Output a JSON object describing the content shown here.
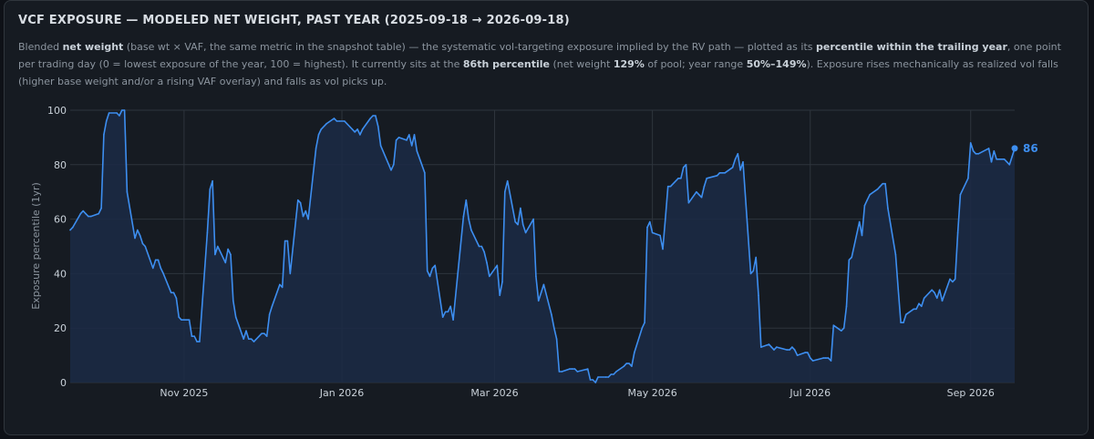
{
  "header": {
    "title": "VCF EXPOSURE — MODELED NET WEIGHT, PAST YEAR (2025-09-18 → 2026-09-18)"
  },
  "description": {
    "t1": "Blended ",
    "b1": "net weight",
    "t2": " (base wt × VAF, the same metric in the snapshot table) — the systematic vol-targeting exposure implied by the RV path — plotted as its ",
    "b2": "percentile within the trailing year",
    "t3": ", one point per trading day (0 = lowest exposure of the year, 100 = highest). It currently sits at the ",
    "b3": "86th percentile",
    "t4": " (net weight ",
    "b4": "129%",
    "t5": " of pool; year range ",
    "b5": "50%–149%",
    "t6": "). Exposure rises mechanically as realized vol falls (higher base weight and/or a rising VAF overlay) and falls as vol picks up."
  },
  "colors": {
    "line": "#3d8ef0",
    "fill": "#1b2a45",
    "grid": "#2e353d",
    "axis_text": "#c9d1d9",
    "label": "#3d8ef0"
  },
  "chart_data": {
    "type": "area",
    "x_start": "2025-09-18",
    "x_end": "2026-09-18",
    "ylabel": "Exposure percentile (1yr)",
    "ylim": [
      0,
      100
    ],
    "yticks": [
      0,
      20,
      40,
      60,
      80,
      100
    ],
    "xticks": [
      {
        "label": "Nov 2025",
        "date": "2025-11-01"
      },
      {
        "label": "Jan 2026",
        "date": "2026-01-01"
      },
      {
        "label": "Mar 2026",
        "date": "2026-03-01"
      },
      {
        "label": "May 2026",
        "date": "2026-05-01"
      },
      {
        "label": "Jul 2026",
        "date": "2026-07-01"
      },
      {
        "label": "Sep 2026",
        "date": "2026-09-01"
      }
    ],
    "grid": true,
    "end_label": "86",
    "series": [
      {
        "values": [
          [
            "2025-09-18",
            56
          ],
          [
            "2025-09-19",
            57
          ],
          [
            "2025-09-22",
            62
          ],
          [
            "2025-09-23",
            63
          ],
          [
            "2025-09-24",
            62
          ],
          [
            "2025-09-25",
            61
          ],
          [
            "2025-09-26",
            61
          ],
          [
            "2025-09-29",
            62
          ],
          [
            "2025-09-30",
            64
          ],
          [
            "2025-10-01",
            91
          ],
          [
            "2025-10-02",
            96
          ],
          [
            "2025-10-03",
            99
          ],
          [
            "2025-10-06",
            99
          ],
          [
            "2025-10-07",
            98
          ],
          [
            "2025-10-08",
            100
          ],
          [
            "2025-10-09",
            100
          ],
          [
            "2025-10-10",
            70
          ],
          [
            "2025-10-13",
            53
          ],
          [
            "2025-10-14",
            56
          ],
          [
            "2025-10-15",
            54
          ],
          [
            "2025-10-16",
            51
          ],
          [
            "2025-10-17",
            50
          ],
          [
            "2025-10-20",
            42
          ],
          [
            "2025-10-21",
            45
          ],
          [
            "2025-10-22",
            45
          ],
          [
            "2025-10-23",
            42
          ],
          [
            "2025-10-24",
            40
          ],
          [
            "2025-10-27",
            33
          ],
          [
            "2025-10-28",
            33
          ],
          [
            "2025-10-29",
            31
          ],
          [
            "2025-10-30",
            24
          ],
          [
            "2025-10-31",
            23
          ],
          [
            "2025-11-03",
            23
          ],
          [
            "2025-11-04",
            17
          ],
          [
            "2025-11-05",
            17
          ],
          [
            "2025-11-06",
            15
          ],
          [
            "2025-11-07",
            15
          ],
          [
            "2025-11-10",
            55
          ],
          [
            "2025-11-11",
            71
          ],
          [
            "2025-11-12",
            74
          ],
          [
            "2025-11-13",
            47
          ],
          [
            "2025-11-14",
            50
          ],
          [
            "2025-11-17",
            44
          ],
          [
            "2025-11-18",
            49
          ],
          [
            "2025-11-19",
            47
          ],
          [
            "2025-11-20",
            30
          ],
          [
            "2025-11-21",
            24
          ],
          [
            "2025-11-24",
            16
          ],
          [
            "2025-11-25",
            19
          ],
          [
            "2025-11-26",
            16
          ],
          [
            "2025-11-27",
            16
          ],
          [
            "2025-11-28",
            15
          ],
          [
            "2025-12-01",
            18
          ],
          [
            "2025-12-02",
            18
          ],
          [
            "2025-12-03",
            17
          ],
          [
            "2025-12-04",
            25
          ],
          [
            "2025-12-05",
            28
          ],
          [
            "2025-12-08",
            36
          ],
          [
            "2025-12-09",
            35
          ],
          [
            "2025-12-10",
            52
          ],
          [
            "2025-12-11",
            52
          ],
          [
            "2025-12-12",
            40
          ],
          [
            "2025-12-15",
            67
          ],
          [
            "2025-12-16",
            66
          ],
          [
            "2025-12-17",
            61
          ],
          [
            "2025-12-18",
            63
          ],
          [
            "2025-12-19",
            60
          ],
          [
            "2025-12-22",
            86
          ],
          [
            "2025-12-23",
            91
          ],
          [
            "2025-12-24",
            93
          ],
          [
            "2025-12-26",
            95
          ],
          [
            "2025-12-29",
            97
          ],
          [
            "2025-12-30",
            96
          ],
          [
            "2025-12-31",
            96
          ],
          [
            "2026-01-02",
            96
          ],
          [
            "2026-01-05",
            93
          ],
          [
            "2026-01-06",
            92
          ],
          [
            "2026-01-07",
            93
          ],
          [
            "2026-01-08",
            91
          ],
          [
            "2026-01-09",
            93
          ],
          [
            "2026-01-12",
            97
          ],
          [
            "2026-01-13",
            98
          ],
          [
            "2026-01-14",
            98
          ],
          [
            "2026-01-15",
            94
          ],
          [
            "2026-01-16",
            87
          ],
          [
            "2026-01-20",
            78
          ],
          [
            "2026-01-21",
            80
          ],
          [
            "2026-01-22",
            89
          ],
          [
            "2026-01-23",
            90
          ],
          [
            "2026-01-26",
            89
          ],
          [
            "2026-01-27",
            91
          ],
          [
            "2026-01-28",
            87
          ],
          [
            "2026-01-29",
            91
          ],
          [
            "2026-01-30",
            85
          ],
          [
            "2026-02-02",
            77
          ],
          [
            "2026-02-03",
            41
          ],
          [
            "2026-02-04",
            39
          ],
          [
            "2026-02-05",
            42
          ],
          [
            "2026-02-06",
            43
          ],
          [
            "2026-02-09",
            24
          ],
          [
            "2026-02-10",
            26
          ],
          [
            "2026-02-11",
            26
          ],
          [
            "2026-02-12",
            28
          ],
          [
            "2026-02-13",
            23
          ],
          [
            "2026-02-17",
            61
          ],
          [
            "2026-02-18",
            67
          ],
          [
            "2026-02-19",
            60
          ],
          [
            "2026-02-20",
            56
          ],
          [
            "2026-02-23",
            50
          ],
          [
            "2026-02-24",
            50
          ],
          [
            "2026-02-25",
            48
          ],
          [
            "2026-02-26",
            44
          ],
          [
            "2026-02-27",
            39
          ],
          [
            "2026-03-02",
            43
          ],
          [
            "2026-03-03",
            32
          ],
          [
            "2026-03-04",
            37
          ],
          [
            "2026-03-05",
            70
          ],
          [
            "2026-03-06",
            74
          ],
          [
            "2026-03-09",
            59
          ],
          [
            "2026-03-10",
            58
          ],
          [
            "2026-03-11",
            64
          ],
          [
            "2026-03-12",
            58
          ],
          [
            "2026-03-13",
            55
          ],
          [
            "2026-03-16",
            60
          ],
          [
            "2026-03-17",
            39
          ],
          [
            "2026-03-18",
            30
          ],
          [
            "2026-03-19",
            33
          ],
          [
            "2026-03-20",
            36
          ],
          [
            "2026-03-23",
            25
          ],
          [
            "2026-03-24",
            20
          ],
          [
            "2026-03-25",
            16
          ],
          [
            "2026-03-26",
            4
          ],
          [
            "2026-03-27",
            4
          ],
          [
            "2026-03-30",
            5
          ],
          [
            "2026-03-31",
            5
          ],
          [
            "2026-04-01",
            5
          ],
          [
            "2026-04-02",
            4
          ],
          [
            "2026-04-06",
            5
          ],
          [
            "2026-04-07",
            1
          ],
          [
            "2026-04-08",
            1
          ],
          [
            "2026-04-09",
            0
          ],
          [
            "2026-04-10",
            2
          ],
          [
            "2026-04-13",
            2
          ],
          [
            "2026-04-14",
            2
          ],
          [
            "2026-04-15",
            3
          ],
          [
            "2026-04-16",
            3
          ],
          [
            "2026-04-17",
            4
          ],
          [
            "2026-04-20",
            6
          ],
          [
            "2026-04-21",
            7
          ],
          [
            "2026-04-22",
            7
          ],
          [
            "2026-04-23",
            6
          ],
          [
            "2026-04-24",
            11
          ],
          [
            "2026-04-27",
            20
          ],
          [
            "2026-04-28",
            22
          ],
          [
            "2026-04-29",
            57
          ],
          [
            "2026-04-30",
            59
          ],
          [
            "2026-05-01",
            55
          ],
          [
            "2026-05-04",
            54
          ],
          [
            "2026-05-05",
            49
          ],
          [
            "2026-05-06",
            60
          ],
          [
            "2026-05-07",
            72
          ],
          [
            "2026-05-08",
            72
          ],
          [
            "2026-05-11",
            75
          ],
          [
            "2026-05-12",
            75
          ],
          [
            "2026-05-13",
            79
          ],
          [
            "2026-05-14",
            80
          ],
          [
            "2026-05-15",
            66
          ],
          [
            "2026-05-18",
            70
          ],
          [
            "2026-05-19",
            69
          ],
          [
            "2026-05-20",
            68
          ],
          [
            "2026-05-21",
            72
          ],
          [
            "2026-05-22",
            75
          ],
          [
            "2026-05-26",
            76
          ],
          [
            "2026-05-27",
            77
          ],
          [
            "2026-05-28",
            77
          ],
          [
            "2026-05-29",
            77
          ],
          [
            "2026-06-01",
            79
          ],
          [
            "2026-06-02",
            82
          ],
          [
            "2026-06-03",
            84
          ],
          [
            "2026-06-04",
            78
          ],
          [
            "2026-06-05",
            81
          ],
          [
            "2026-06-08",
            40
          ],
          [
            "2026-06-09",
            41
          ],
          [
            "2026-06-10",
            46
          ],
          [
            "2026-06-11",
            32
          ],
          [
            "2026-06-12",
            13
          ],
          [
            "2026-06-15",
            14
          ],
          [
            "2026-06-16",
            13
          ],
          [
            "2026-06-17",
            12
          ],
          [
            "2026-06-18",
            13
          ],
          [
            "2026-06-22",
            12
          ],
          [
            "2026-06-23",
            12
          ],
          [
            "2026-06-24",
            13
          ],
          [
            "2026-06-25",
            12
          ],
          [
            "2026-06-26",
            10
          ],
          [
            "2026-06-29",
            11
          ],
          [
            "2026-06-30",
            11
          ],
          [
            "2026-07-01",
            9
          ],
          [
            "2026-07-02",
            8
          ],
          [
            "2026-07-06",
            9
          ],
          [
            "2026-07-07",
            9
          ],
          [
            "2026-07-08",
            9
          ],
          [
            "2026-07-09",
            8
          ],
          [
            "2026-07-10",
            21
          ],
          [
            "2026-07-13",
            19
          ],
          [
            "2026-07-14",
            20
          ],
          [
            "2026-07-15",
            28
          ],
          [
            "2026-07-16",
            45
          ],
          [
            "2026-07-17",
            46
          ],
          [
            "2026-07-20",
            59
          ],
          [
            "2026-07-21",
            54
          ],
          [
            "2026-07-22",
            65
          ],
          [
            "2026-07-23",
            67
          ],
          [
            "2026-07-24",
            69
          ],
          [
            "2026-07-27",
            71
          ],
          [
            "2026-07-28",
            72
          ],
          [
            "2026-07-29",
            73
          ],
          [
            "2026-07-30",
            73
          ],
          [
            "2026-07-31",
            64
          ],
          [
            "2026-08-03",
            47
          ],
          [
            "2026-08-04",
            34
          ],
          [
            "2026-08-05",
            22
          ],
          [
            "2026-08-06",
            22
          ],
          [
            "2026-08-07",
            25
          ],
          [
            "2026-08-10",
            27
          ],
          [
            "2026-08-11",
            27
          ],
          [
            "2026-08-12",
            29
          ],
          [
            "2026-08-13",
            28
          ],
          [
            "2026-08-14",
            31
          ],
          [
            "2026-08-17",
            34
          ],
          [
            "2026-08-18",
            33
          ],
          [
            "2026-08-19",
            31
          ],
          [
            "2026-08-20",
            34
          ],
          [
            "2026-08-21",
            30
          ],
          [
            "2026-08-24",
            38
          ],
          [
            "2026-08-25",
            37
          ],
          [
            "2026-08-26",
            38
          ],
          [
            "2026-08-27",
            55
          ],
          [
            "2026-08-28",
            69
          ],
          [
            "2026-08-31",
            75
          ],
          [
            "2026-09-01",
            88
          ],
          [
            "2026-09-02",
            85
          ],
          [
            "2026-09-03",
            84
          ],
          [
            "2026-09-04",
            84
          ],
          [
            "2026-09-08",
            86
          ],
          [
            "2026-09-09",
            81
          ],
          [
            "2026-09-10",
            85
          ],
          [
            "2026-09-11",
            82
          ],
          [
            "2026-09-14",
            82
          ],
          [
            "2026-09-15",
            81
          ],
          [
            "2026-09-16",
            80
          ],
          [
            "2026-09-17",
            83
          ],
          [
            "2026-09-18",
            86
          ]
        ]
      }
    ]
  }
}
